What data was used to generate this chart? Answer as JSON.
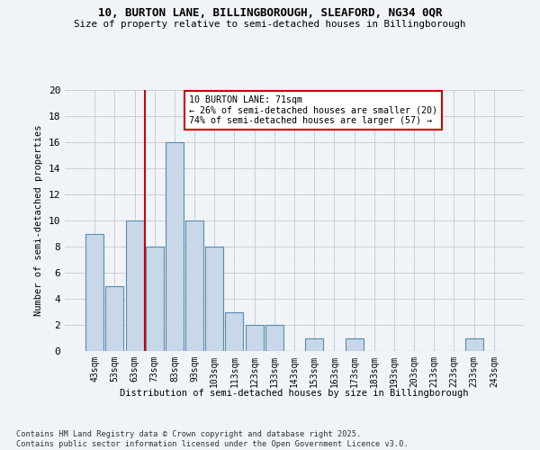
{
  "title1": "10, BURTON LANE, BILLINGBOROUGH, SLEAFORD, NG34 0QR",
  "title2": "Size of property relative to semi-detached houses in Billingborough",
  "xlabel": "Distribution of semi-detached houses by size in Billingborough",
  "ylabel": "Number of semi-detached properties",
  "footer1": "Contains HM Land Registry data © Crown copyright and database right 2025.",
  "footer2": "Contains public sector information licensed under the Open Government Licence v3.0.",
  "annotation_title": "10 BURTON LANE: 71sqm",
  "annotation_line1": "← 26% of semi-detached houses are smaller (20)",
  "annotation_line2": "74% of semi-detached houses are larger (57) →",
  "bar_labels": [
    "43sqm",
    "53sqm",
    "63sqm",
    "73sqm",
    "83sqm",
    "93sqm",
    "103sqm",
    "113sqm",
    "123sqm",
    "133sqm",
    "143sqm",
    "153sqm",
    "163sqm",
    "173sqm",
    "183sqm",
    "193sqm",
    "203sqm",
    "213sqm",
    "223sqm",
    "233sqm",
    "243sqm"
  ],
  "bar_values": [
    9,
    5,
    10,
    8,
    16,
    10,
    8,
    3,
    2,
    2,
    0,
    1,
    0,
    1,
    0,
    0,
    0,
    0,
    0,
    1,
    0
  ],
  "bar_color": "#c8d8e8",
  "bar_edge_color": "#5a8ab0",
  "grid_color": "#c8c8c8",
  "vline_x": 2.5,
  "vline_color": "#cc0000",
  "ylim": [
    0,
    20
  ],
  "yticks": [
    0,
    2,
    4,
    6,
    8,
    10,
    12,
    14,
    16,
    18,
    20
  ],
  "bg_color": "#f0f4f8"
}
